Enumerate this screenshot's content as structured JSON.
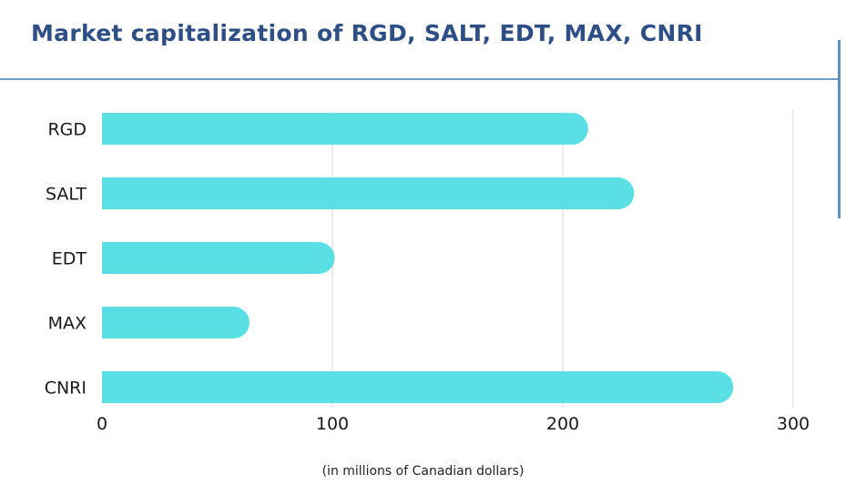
{
  "colors": {
    "title": "#2e4f86",
    "rule": "#6f9ec8",
    "edge": "#5f8fbf",
    "bar": "#5ae0e4",
    "grid": "#e6e6e6",
    "text": "#1a1a1a"
  },
  "chart_data": {
    "type": "bar",
    "orientation": "horizontal",
    "title": "Market capitalization of RGD, SALT, EDT, MAX, CNRI",
    "categories": [
      "RGD",
      "SALT",
      "EDT",
      "MAX",
      "CNRI"
    ],
    "values": [
      211,
      231,
      101,
      64,
      274
    ],
    "xlabel": "(in millions of Canadian dollars)",
    "ylabel": "",
    "xlim": [
      0,
      300
    ],
    "xticks": [
      "0",
      "100",
      "200",
      "300"
    ],
    "grid": "vertical"
  }
}
